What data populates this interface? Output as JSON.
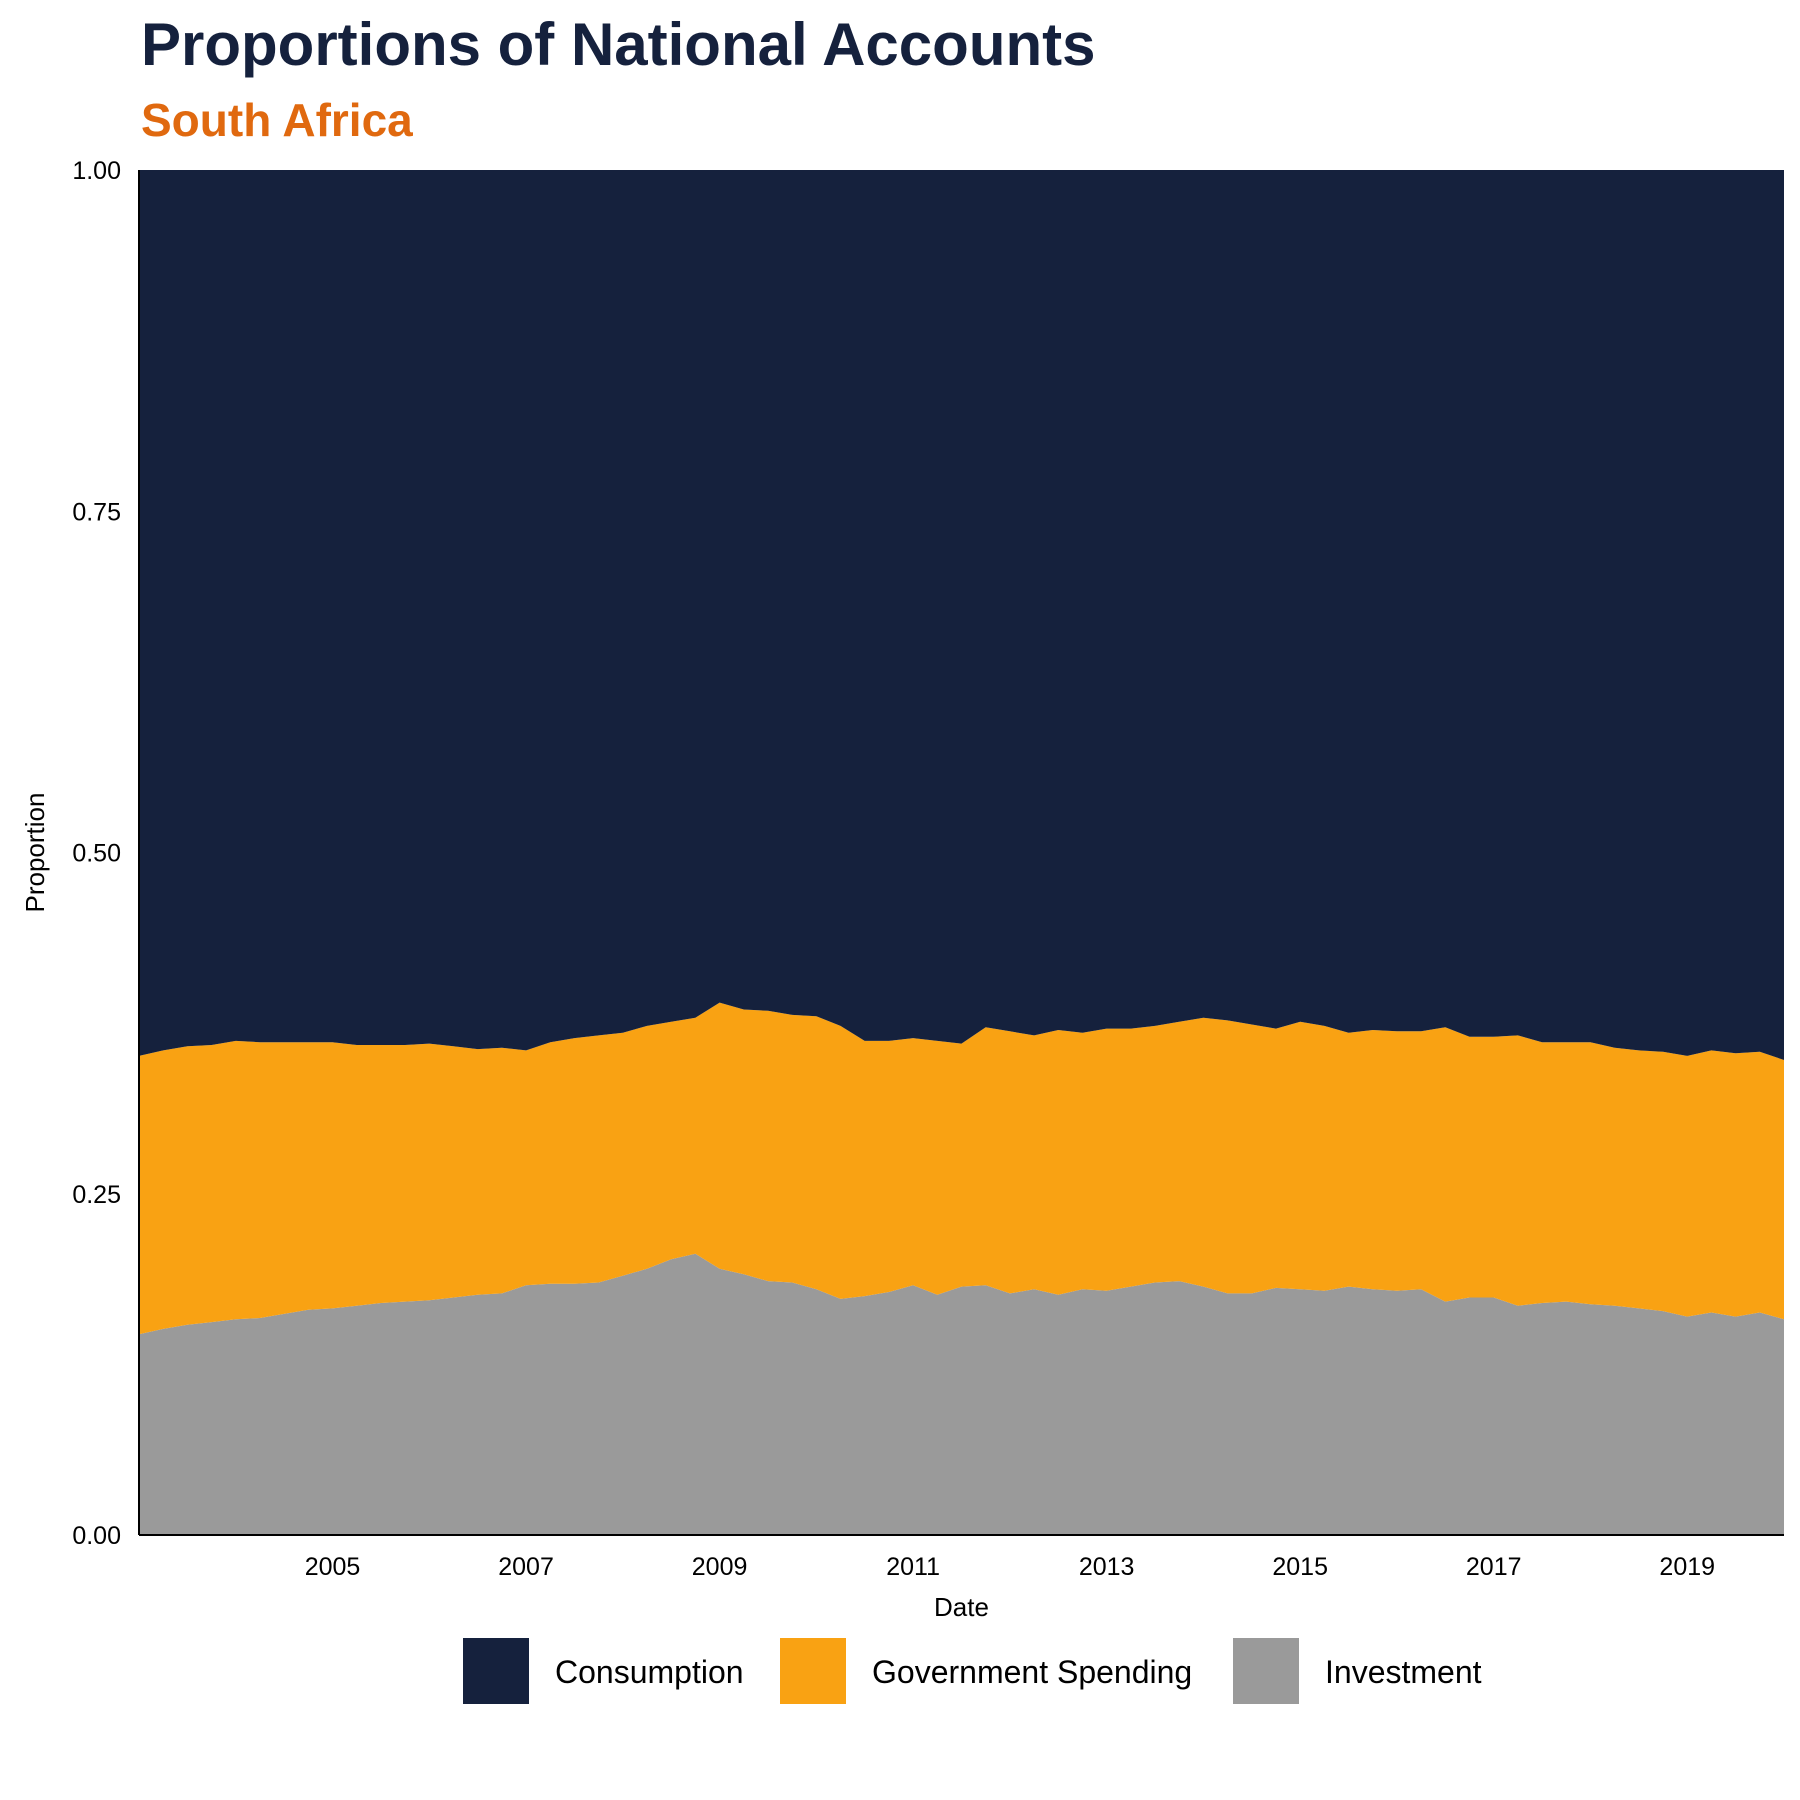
{
  "header": {
    "title": "Proportions of National Accounts",
    "subtitle": "South Africa"
  },
  "colors": {
    "consumption": "#15213d",
    "government": "#f9a213",
    "investment": "#9a9a9a",
    "title": "#15213d",
    "subtitle": "#e0690f"
  },
  "chart_data": {
    "type": "area",
    "stacked": true,
    "normalized": true,
    "title": "Proportions of National Accounts",
    "subtitle": "South Africa",
    "xlabel": "Date",
    "ylabel": "Proportion",
    "xlim": [
      2003.0,
      2020.0
    ],
    "ylim": [
      0,
      1
    ],
    "x_ticks": [
      2005,
      2007,
      2009,
      2011,
      2013,
      2015,
      2017,
      2019
    ],
    "x_tick_labels": [
      "2005",
      "2007",
      "2009",
      "2011",
      "2013",
      "2015",
      "2017",
      "2019"
    ],
    "y_ticks": [
      0,
      0.25,
      0.5,
      0.75,
      1.0
    ],
    "y_tick_labels": [
      "0.00",
      "0.25",
      "0.50",
      "0.75",
      "1.00"
    ],
    "grid": false,
    "legend_position": "bottom",
    "x": [
      2003.0,
      2003.25,
      2003.5,
      2003.75,
      2004.0,
      2004.25,
      2004.5,
      2004.75,
      2005.0,
      2005.25,
      2005.5,
      2005.75,
      2006.0,
      2006.25,
      2006.5,
      2006.75,
      2007.0,
      2007.25,
      2007.5,
      2007.75,
      2008.0,
      2008.25,
      2008.5,
      2008.75,
      2009.0,
      2009.25,
      2009.5,
      2009.75,
      2010.0,
      2010.25,
      2010.5,
      2010.75,
      2011.0,
      2011.25,
      2011.5,
      2011.75,
      2012.0,
      2012.25,
      2012.5,
      2012.75,
      2013.0,
      2013.25,
      2013.5,
      2013.75,
      2014.0,
      2014.25,
      2014.5,
      2014.75,
      2015.0,
      2015.25,
      2015.5,
      2015.75,
      2016.0,
      2016.25,
      2016.5,
      2016.75,
      2017.0,
      2017.25,
      2017.5,
      2017.75,
      2018.0,
      2018.25,
      2018.5,
      2018.75,
      2019.0,
      2019.25,
      2019.5,
      2019.75,
      2020.0
    ],
    "series": [
      {
        "name": "Investment",
        "values": [
          0.147,
          0.151,
          0.154,
          0.156,
          0.158,
          0.159,
          0.162,
          0.165,
          0.166,
          0.168,
          0.17,
          0.171,
          0.172,
          0.174,
          0.176,
          0.177,
          0.183,
          0.184,
          0.184,
          0.185,
          0.19,
          0.195,
          0.202,
          0.206,
          0.195,
          0.191,
          0.186,
          0.185,
          0.18,
          0.173,
          0.175,
          0.178,
          0.183,
          0.176,
          0.182,
          0.183,
          0.177,
          0.18,
          0.176,
          0.18,
          0.179,
          0.182,
          0.185,
          0.186,
          0.182,
          0.177,
          0.177,
          0.181,
          0.18,
          0.179,
          0.182,
          0.18,
          0.179,
          0.18,
          0.171,
          0.174,
          0.174,
          0.168,
          0.17,
          0.171,
          0.169,
          0.168,
          0.166,
          0.164,
          0.16,
          0.163,
          0.16,
          0.163,
          0.158
        ]
      },
      {
        "name": "Government Spending",
        "values": [
          0.204,
          0.204,
          0.204,
          0.203,
          0.204,
          0.202,
          0.199,
          0.196,
          0.195,
          0.191,
          0.189,
          0.188,
          0.188,
          0.184,
          0.18,
          0.18,
          0.172,
          0.177,
          0.18,
          0.181,
          0.178,
          0.178,
          0.174,
          0.173,
          0.195,
          0.194,
          0.198,
          0.196,
          0.2,
          0.2,
          0.187,
          0.184,
          0.181,
          0.186,
          0.178,
          0.189,
          0.192,
          0.186,
          0.194,
          0.188,
          0.192,
          0.189,
          0.188,
          0.19,
          0.197,
          0.2,
          0.197,
          0.19,
          0.196,
          0.194,
          0.186,
          0.19,
          0.19,
          0.189,
          0.201,
          0.191,
          0.191,
          0.198,
          0.191,
          0.19,
          0.192,
          0.189,
          0.189,
          0.19,
          0.191,
          0.192,
          0.193,
          0.191,
          0.19
        ]
      },
      {
        "name": "Consumption",
        "values": [
          0.649,
          0.645,
          0.642,
          0.641,
          0.638,
          0.639,
          0.639,
          0.639,
          0.639,
          0.641,
          0.641,
          0.641,
          0.64,
          0.642,
          0.644,
          0.643,
          0.645,
          0.639,
          0.636,
          0.634,
          0.632,
          0.627,
          0.624,
          0.621,
          0.61,
          0.615,
          0.616,
          0.619,
          0.62,
          0.627,
          0.638,
          0.638,
          0.636,
          0.638,
          0.64,
          0.628,
          0.631,
          0.634,
          0.63,
          0.632,
          0.629,
          0.629,
          0.627,
          0.624,
          0.621,
          0.623,
          0.626,
          0.629,
          0.624,
          0.627,
          0.632,
          0.63,
          0.631,
          0.631,
          0.628,
          0.635,
          0.635,
          0.634,
          0.639,
          0.639,
          0.639,
          0.643,
          0.645,
          0.646,
          0.649,
          0.645,
          0.647,
          0.646,
          0.652
        ]
      }
    ]
  }
}
